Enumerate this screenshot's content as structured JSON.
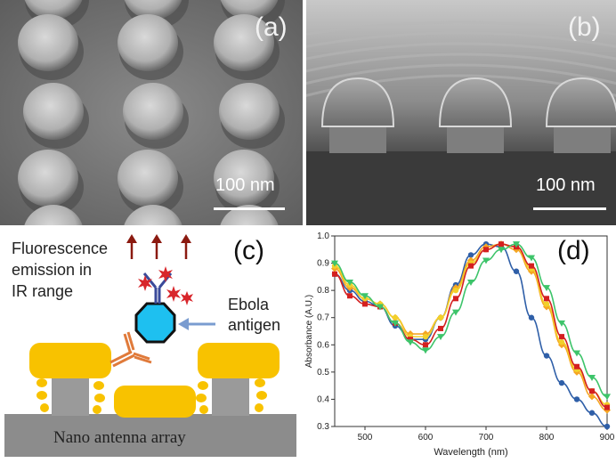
{
  "panels": {
    "a": {
      "label": "(a)",
      "scale_bar": "100 nm"
    },
    "b": {
      "label": "(b)",
      "scale_bar": "100 nm"
    },
    "c": {
      "label": "(c)",
      "fluorescence_line1": "Fluorescence",
      "fluorescence_line2": "emission in",
      "fluorescence_line3": "IR range",
      "antigen_line1": "Ebola",
      "antigen_line2": "antigen",
      "substrate_label": "Nano antenna array"
    },
    "d": {
      "label": "(d)"
    }
  },
  "colors": {
    "series_blue": "#2f5fa8",
    "series_orange": "#f5a623",
    "series_yellow": "#f2d02a",
    "series_red": "#d42020",
    "series_green": "#3dc46a",
    "gold": "#f8c200",
    "substrate": "#8c8c8c"
  },
  "chart_data": {
    "type": "line",
    "xlabel": "Wavelength (nm)",
    "ylabel": "Absorbance (A.U.)",
    "xlim": [
      450,
      900
    ],
    "ylim": [
      0.3,
      1.0
    ],
    "x_ticks": [
      "500",
      "600",
      "700",
      "800",
      "900"
    ],
    "y_ticks": [
      "0.3",
      "0.4",
      "0.5",
      "0.6",
      "0.7",
      "0.8",
      "0.9",
      "1.0"
    ],
    "x": [
      450,
      475,
      500,
      525,
      550,
      575,
      600,
      625,
      650,
      675,
      700,
      725,
      750,
      775,
      800,
      825,
      850,
      875,
      900
    ],
    "series": [
      {
        "color": "#2f5fa8",
        "marker": "circle",
        "values": [
          0.86,
          0.8,
          0.76,
          0.74,
          0.67,
          0.62,
          0.62,
          0.7,
          0.82,
          0.93,
          0.97,
          0.96,
          0.87,
          0.7,
          0.56,
          0.46,
          0.4,
          0.35,
          0.3
        ]
      },
      {
        "color": "#f5a623",
        "marker": "diamond",
        "values": [
          0.88,
          0.81,
          0.77,
          0.75,
          0.7,
          0.64,
          0.64,
          0.7,
          0.81,
          0.91,
          0.96,
          0.97,
          0.95,
          0.87,
          0.74,
          0.6,
          0.5,
          0.41,
          0.36
        ]
      },
      {
        "color": "#f2d02a",
        "marker": "circle",
        "values": [
          0.89,
          0.82,
          0.77,
          0.75,
          0.7,
          0.63,
          0.63,
          0.7,
          0.8,
          0.9,
          0.95,
          0.97,
          0.96,
          0.88,
          0.75,
          0.61,
          0.51,
          0.43,
          0.38
        ]
      },
      {
        "color": "#d42020",
        "marker": "square",
        "values": [
          0.86,
          0.78,
          0.75,
          0.74,
          0.68,
          0.62,
          0.6,
          0.66,
          0.77,
          0.89,
          0.95,
          0.97,
          0.96,
          0.89,
          0.77,
          0.63,
          0.52,
          0.43,
          0.37
        ]
      },
      {
        "color": "#3dc46a",
        "marker": "triangle-down",
        "values": [
          0.9,
          0.83,
          0.78,
          0.74,
          0.68,
          0.61,
          0.58,
          0.63,
          0.72,
          0.83,
          0.91,
          0.95,
          0.97,
          0.92,
          0.81,
          0.68,
          0.57,
          0.48,
          0.41
        ]
      }
    ]
  }
}
